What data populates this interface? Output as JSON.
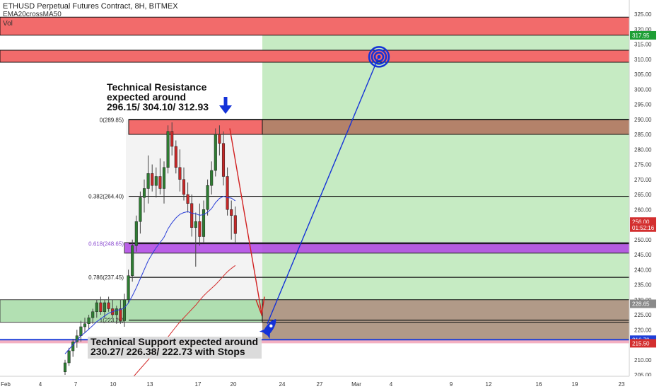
{
  "header": {
    "symbol_title": "ETHUSD Perpetual Futures Contract, 8H, BITMEX",
    "indicator": "EMA20crossMA50",
    "vol_label": "Vol"
  },
  "annotations": {
    "resistance_text": [
      "Technical Resistance",
      "expected around",
      "296.15/ 304.10/ 312.93"
    ],
    "support_text": [
      "Technical Support expected around",
      "230.27/ 226.38/ 222.73 with Stops"
    ]
  },
  "colors": {
    "resistance_zone": "#f26b6b",
    "support_zone": "#9fd9a0",
    "target_zone": "#c6ebc3",
    "loss_zone": "#b19a88",
    "fib_purple": "#b145e5",
    "up_candle": "#2e7d32",
    "down_candle": "#c62828",
    "ema": "#2b3fd8",
    "ma": "#d32f2f",
    "arrow_blue": "#1432d8",
    "arrow_red": "#d12020"
  },
  "chart_data": {
    "type": "candlestick",
    "ylim": [
      205,
      325
    ],
    "y_ticks": [
      "325.00",
      "320.00",
      "315.00",
      "310.00",
      "305.00",
      "300.00",
      "295.00",
      "290.00",
      "285.00",
      "280.00",
      "275.00",
      "270.00",
      "265.00",
      "260.00",
      "255.00",
      "250.00",
      "245.00",
      "240.00",
      "235.00",
      "230.00",
      "225.00",
      "220.00",
      "215.00",
      "210.00",
      "205.00"
    ],
    "x_ticks": [
      "Feb",
      "4",
      "7",
      "10",
      "13",
      "17",
      "20",
      "24",
      "27",
      "Mar",
      "4",
      "9",
      "12",
      "16",
      "19",
      "23"
    ],
    "price_tags": [
      {
        "text": "317.95",
        "value": 317.95,
        "color": "#1e9e35"
      },
      {
        "text": "256.00",
        "value": 256.0,
        "color": "#d32f2f"
      },
      {
        "text": "01:52:16",
        "value": 254.0,
        "color": "#d32f2f"
      },
      {
        "text": "228.65",
        "value": 228.65,
        "color": "#8a8a8a"
      },
      {
        "text": "216.70",
        "value": 216.7,
        "color": "#1f3fd8"
      },
      {
        "text": "215.50",
        "value": 215.5,
        "color": "#d32f2f"
      }
    ],
    "fib_levels": [
      {
        "label": "0(289.85)",
        "value": 289.85
      },
      {
        "label": "0.382(264.40)",
        "value": 264.4
      },
      {
        "label": "0.618(248.65)",
        "value": 248.65
      },
      {
        "label": "0.786(237.45)",
        "value": 237.45
      },
      {
        "label": "1(223.20)",
        "value": 223.2
      }
    ],
    "zones": {
      "vol_band": [
        318,
        324
      ],
      "resistance_upper": [
        309,
        313
      ],
      "resistance_fib": [
        285,
        290
      ],
      "purple_band": [
        245.5,
        249
      ],
      "support_green": [
        222.5,
        230
      ],
      "support_blue_line": 216.7,
      "pink_stop": [
        215.5,
        216.5
      ],
      "target_box": [
        230,
        318
      ],
      "loss_box": [
        216,
        230
      ]
    },
    "candles": [
      {
        "o": 206,
        "h": 210,
        "l": 205,
        "c": 209
      },
      {
        "o": 209,
        "h": 214,
        "l": 208,
        "c": 213
      },
      {
        "o": 213,
        "h": 217,
        "l": 211,
        "c": 216
      },
      {
        "o": 216,
        "h": 220,
        "l": 214,
        "c": 218
      },
      {
        "o": 218,
        "h": 223,
        "l": 216,
        "c": 221
      },
      {
        "o": 221,
        "h": 224,
        "l": 219,
        "c": 222
      },
      {
        "o": 222,
        "h": 225,
        "l": 220,
        "c": 224
      },
      {
        "o": 224,
        "h": 227,
        "l": 222,
        "c": 226
      },
      {
        "o": 226,
        "h": 230,
        "l": 224,
        "c": 229
      },
      {
        "o": 229,
        "h": 231,
        "l": 225,
        "c": 226
      },
      {
        "o": 226,
        "h": 230,
        "l": 224,
        "c": 229
      },
      {
        "o": 229,
        "h": 231,
        "l": 226,
        "c": 227
      },
      {
        "o": 227,
        "h": 230,
        "l": 224,
        "c": 225
      },
      {
        "o": 225,
        "h": 228,
        "l": 222,
        "c": 227
      },
      {
        "o": 227,
        "h": 230,
        "l": 222,
        "c": 223
      },
      {
        "o": 223,
        "h": 232,
        "l": 221,
        "c": 230
      },
      {
        "o": 230,
        "h": 240,
        "l": 229,
        "c": 238
      },
      {
        "o": 238,
        "h": 250,
        "l": 236,
        "c": 248
      },
      {
        "o": 248,
        "h": 258,
        "l": 246,
        "c": 256
      },
      {
        "o": 256,
        "h": 266,
        "l": 252,
        "c": 264
      },
      {
        "o": 264,
        "h": 270,
        "l": 259,
        "c": 267
      },
      {
        "o": 267,
        "h": 278,
        "l": 262,
        "c": 272
      },
      {
        "o": 272,
        "h": 275,
        "l": 266,
        "c": 268
      },
      {
        "o": 268,
        "h": 274,
        "l": 264,
        "c": 271
      },
      {
        "o": 271,
        "h": 277,
        "l": 265,
        "c": 267
      },
      {
        "o": 267,
        "h": 276,
        "l": 262,
        "c": 274
      },
      {
        "o": 274,
        "h": 288,
        "l": 272,
        "c": 286
      },
      {
        "o": 286,
        "h": 289,
        "l": 278,
        "c": 281
      },
      {
        "o": 281,
        "h": 283,
        "l": 272,
        "c": 274
      },
      {
        "o": 274,
        "h": 280,
        "l": 266,
        "c": 270
      },
      {
        "o": 270,
        "h": 274,
        "l": 263,
        "c": 265
      },
      {
        "o": 265,
        "h": 269,
        "l": 259,
        "c": 262
      },
      {
        "o": 262,
        "h": 265,
        "l": 251,
        "c": 254
      },
      {
        "o": 254,
        "h": 259,
        "l": 241,
        "c": 256
      },
      {
        "o": 256,
        "h": 262,
        "l": 248,
        "c": 251
      },
      {
        "o": 251,
        "h": 263,
        "l": 249,
        "c": 260
      },
      {
        "o": 260,
        "h": 270,
        "l": 258,
        "c": 268
      },
      {
        "o": 268,
        "h": 276,
        "l": 265,
        "c": 273
      },
      {
        "o": 273,
        "h": 287,
        "l": 271,
        "c": 285
      },
      {
        "o": 285,
        "h": 288,
        "l": 278,
        "c": 282
      },
      {
        "o": 282,
        "h": 286,
        "l": 268,
        "c": 271
      },
      {
        "o": 271,
        "h": 274,
        "l": 258,
        "c": 260
      },
      {
        "o": 260,
        "h": 263,
        "l": 250,
        "c": 258
      },
      {
        "o": 258,
        "h": 261,
        "l": 249,
        "c": 252
      }
    ],
    "ema_series": [
      212,
      213.5,
      215,
      216.5,
      218,
      219,
      220.2,
      221.4,
      222.7,
      223.6,
      224.6,
      225.5,
      226,
      226.5,
      226.7,
      227.3,
      228.9,
      231.3,
      234,
      237,
      240,
      243,
      245.2,
      247.3,
      249,
      250.8,
      253.6,
      255.6,
      257.2,
      258.4,
      259,
      259.3,
      258.8,
      258.6,
      258.1,
      258.3,
      259.1,
      260.3,
      262.3,
      263.7,
      264.4,
      264,
      263.8,
      262.9
    ],
    "ma_series_start": 17,
    "ma_series": [
      204,
      205.5,
      207,
      208.5,
      210,
      211.6,
      213,
      214.5,
      216,
      217.6,
      219.3,
      221,
      222.6,
      224,
      225.4,
      226.8,
      228.2,
      229.8,
      231.3,
      232.6,
      233.8,
      235,
      236.4,
      237.9,
      239.3,
      240.4,
      241.4
    ]
  }
}
